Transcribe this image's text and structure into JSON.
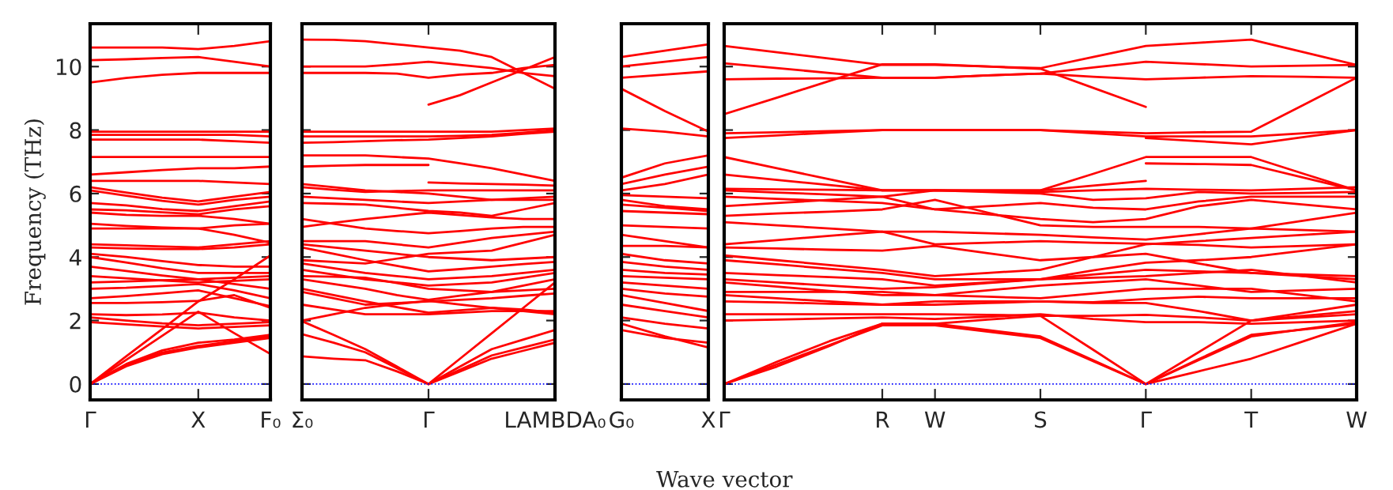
{
  "chart_data": [
    {
      "type": "line",
      "ylabel": "Frequency (THz)",
      "categories": [
        "Γ",
        null,
        null,
        "X",
        null,
        "F₀"
      ],
      "ylim": [
        -0.5,
        11.35
      ],
      "yticks": [
        0,
        2,
        4,
        6,
        8,
        10
      ],
      "grid": false,
      "legend": false,
      "ref_lines": [
        {
          "axis": "y",
          "value": 0,
          "color": "#0000ff",
          "line_style": "dotted"
        }
      ],
      "series": [
        {
          "color": "#ff0000",
          "values": [
            10.6,
            10.6,
            10.6,
            10.55,
            10.65,
            10.8
          ]
        },
        {
          "color": "#ff0000",
          "values": [
            10.2,
            10.23,
            10.27,
            10.3,
            10.15,
            10.0
          ]
        },
        {
          "color": "#ff0000",
          "values": [
            9.5,
            9.64,
            9.74,
            9.8,
            9.8,
            9.8
          ]
        },
        {
          "color": "#ff0000",
          "values": [
            7.95,
            7.95,
            7.95,
            7.95,
            7.95,
            7.95
          ]
        },
        {
          "color": "#ff0000",
          "values": [
            7.85,
            7.85,
            7.85,
            7.85,
            7.85,
            7.8
          ]
        },
        {
          "color": "#ff0000",
          "values": [
            7.7,
            7.7,
            7.7,
            7.7,
            7.65,
            7.6
          ]
        },
        {
          "color": "#ff0000",
          "values": [
            7.15,
            7.15,
            7.15,
            7.15,
            7.15,
            7.15
          ]
        },
        {
          "color": "#ff0000",
          "values": [
            6.6,
            6.67,
            6.74,
            6.8,
            6.8,
            6.85
          ]
        },
        {
          "color": "#ff0000",
          "values": [
            6.4,
            6.4,
            6.4,
            6.4,
            6.35,
            6.3
          ]
        },
        {
          "color": "#ff0000",
          "values": [
            6.2,
            6.03,
            5.87,
            5.75,
            5.9,
            6.05
          ]
        },
        {
          "color": "#ff0000",
          "values": [
            6.1,
            5.93,
            5.77,
            5.65,
            5.8,
            5.9
          ]
        },
        {
          "color": "#ff0000",
          "values": [
            5.7,
            5.63,
            5.51,
            5.45,
            5.6,
            5.75
          ]
        },
        {
          "color": "#ff0000",
          "values": [
            5.5,
            5.47,
            5.41,
            5.35,
            5.5,
            5.6
          ]
        },
        {
          "color": "#ff0000",
          "values": [
            5.4,
            5.33,
            5.3,
            5.3,
            5.2,
            5.05
          ]
        },
        {
          "color": "#ff0000",
          "values": [
            5.05,
            4.98,
            4.93,
            4.9,
            5.0,
            5.05
          ]
        },
        {
          "color": "#ff0000",
          "values": [
            4.9,
            4.9,
            4.9,
            4.9,
            4.7,
            4.45
          ]
        },
        {
          "color": "#ff0000",
          "values": [
            4.4,
            4.37,
            4.33,
            4.3,
            4.4,
            4.5
          ]
        },
        {
          "color": "#ff0000",
          "values": [
            4.3,
            4.27,
            4.25,
            4.25,
            4.3,
            4.4
          ]
        },
        {
          "color": "#ff0000",
          "values": [
            4.1,
            4.0,
            3.87,
            3.75,
            3.7,
            3.7
          ]
        },
        {
          "color": "#ff0000",
          "values": [
            4.0,
            3.83,
            3.65,
            3.5,
            3.5,
            3.5
          ]
        },
        {
          "color": "#ff0000",
          "values": [
            3.7,
            3.56,
            3.42,
            3.3,
            3.35,
            3.4
          ]
        },
        {
          "color": "#ff0000",
          "values": [
            3.4,
            3.33,
            3.26,
            3.2,
            3.25,
            3.3
          ]
        },
        {
          "color": "#ff0000",
          "values": [
            3.2,
            3.23,
            3.27,
            3.3,
            3.15,
            3.0
          ]
        },
        {
          "color": "#ff0000",
          "values": [
            3.0,
            3.03,
            3.09,
            3.15,
            2.95,
            2.7
          ]
        },
        {
          "color": "#ff0000",
          "values": [
            2.7,
            2.77,
            2.86,
            2.95,
            2.7,
            2.45
          ]
        },
        {
          "color": "#ff0000",
          "values": [
            2.55,
            2.55,
            2.58,
            2.62,
            2.8,
            2.4
          ]
        },
        {
          "color": "#ff0000",
          "values": [
            2.2,
            2.17,
            2.19,
            2.25,
            2.1,
            2.0
          ]
        },
        {
          "color": "#ff0000",
          "values": [
            2.1,
            2.0,
            1.91,
            1.85,
            1.9,
            1.95
          ]
        },
        {
          "color": "#ff0000",
          "values": [
            1.95,
            1.88,
            1.81,
            1.75,
            1.8,
            1.85
          ]
        },
        {
          "color": "#ff0000",
          "values": [
            0,
            0.87,
            1.73,
            2.6,
            3.3,
            4.05
          ]
        },
        {
          "color": "#ff0000",
          "values": [
            0,
            0.76,
            1.52,
            2.28,
            1.6,
            0.95
          ]
        },
        {
          "color": "#ff0000",
          "values": [
            0,
            0.63,
            1.06,
            1.3,
            1.4,
            1.55
          ]
        },
        {
          "color": "#ff0000",
          "values": [
            0,
            0.6,
            0.99,
            1.2,
            1.35,
            1.5
          ]
        },
        {
          "color": "#ff0000",
          "values": [
            0,
            0.56,
            0.94,
            1.15,
            1.3,
            1.45
          ]
        }
      ]
    },
    {
      "type": "line",
      "categories": [
        "Σ₀",
        null,
        null,
        null,
        "Γ",
        null,
        null,
        null,
        "LAMBDA₀"
      ],
      "ylim": [
        -0.5,
        11.35
      ],
      "yticks": [
        0,
        2,
        4,
        6,
        8,
        10
      ],
      "tick_labels": "x",
      "grid": false,
      "legend": false,
      "ref_lines": [
        {
          "axis": "y",
          "value": 0,
          "color": "#0000ff",
          "line_style": "dotted"
        }
      ],
      "series": [
        {
          "color": "#ff0000",
          "values": [
            10.85,
            10.84,
            10.8,
            10.7,
            10.6,
            10.5,
            10.3,
            9.8,
            9.3
          ]
        },
        {
          "color": "#ff0000",
          "values": [
            10.0,
            10.0,
            10.0,
            10.07,
            10.15,
            10.05,
            9.95,
            9.8,
            9.7
          ]
        },
        {
          "color": "#ff0000",
          "values": [
            9.8,
            9.8,
            9.8,
            9.78,
            9.65,
            9.75,
            9.8,
            9.95,
            10.05
          ]
        },
        {
          "color": "#ff0000",
          "values": [
            null,
            null,
            null,
            null,
            8.8,
            9.1,
            9.5,
            9.9,
            10.3
          ]
        },
        {
          "color": "#ff0000",
          "values": [
            7.95,
            7.95,
            7.95,
            7.95,
            7.95,
            7.95,
            7.95,
            8.0,
            8.05
          ]
        },
        {
          "color": "#ff0000",
          "values": [
            7.8,
            7.8,
            7.8,
            7.8,
            7.8,
            7.82,
            7.85,
            7.92,
            8.0
          ]
        },
        {
          "color": "#ff0000",
          "values": [
            7.6,
            7.62,
            7.65,
            7.68,
            7.7,
            7.75,
            7.8,
            7.88,
            7.95
          ]
        },
        {
          "color": "#ff0000",
          "values": [
            7.2,
            7.2,
            7.2,
            7.15,
            7.1,
            6.95,
            6.8,
            6.6,
            6.4
          ]
        },
        {
          "color": "#ff0000",
          "values": [
            6.85,
            6.88,
            6.9,
            6.9,
            6.9,
            null,
            null,
            null,
            null
          ]
        },
        {
          "color": "#ff0000",
          "values": [
            null,
            null,
            null,
            null,
            6.35,
            6.32,
            6.3,
            6.28,
            6.25
          ]
        },
        {
          "color": "#ff0000",
          "values": [
            6.3,
            6.2,
            6.1,
            6.05,
            6.0,
            5.9,
            5.8,
            5.85,
            5.9
          ]
        },
        {
          "color": "#ff0000",
          "values": [
            6.2,
            6.12,
            6.05,
            6.08,
            6.1,
            6.1,
            6.1,
            6.1,
            6.1
          ]
        },
        {
          "color": "#ff0000",
          "values": [
            5.9,
            5.85,
            5.8,
            5.75,
            5.7,
            5.75,
            5.8,
            5.8,
            5.8
          ]
        },
        {
          "color": "#ff0000",
          "values": [
            5.7,
            5.68,
            5.65,
            5.55,
            5.45,
            5.4,
            5.3,
            5.5,
            5.7
          ]
        },
        {
          "color": "#ff0000",
          "values": [
            4.95,
            5.08,
            5.2,
            5.3,
            5.4,
            5.32,
            5.25,
            5.2,
            5.2
          ]
        },
        {
          "color": "#ff0000",
          "values": [
            5.2,
            5.05,
            4.9,
            4.82,
            4.75,
            4.82,
            4.9,
            4.95,
            4.95
          ]
        },
        {
          "color": "#ff0000",
          "values": [
            4.5,
            4.5,
            4.5,
            4.4,
            4.3,
            4.45,
            4.6,
            4.7,
            4.8
          ]
        },
        {
          "color": "#ff0000",
          "values": [
            3.9,
            3.85,
            3.8,
            3.95,
            4.1,
            4.15,
            4.2,
            4.45,
            4.7
          ]
        },
        {
          "color": "#ff0000",
          "values": [
            4.4,
            4.3,
            4.2,
            4.1,
            4.0,
            3.95,
            3.9,
            3.95,
            4.0
          ]
        },
        {
          "color": "#ff0000",
          "values": [
            4.3,
            4.1,
            3.9,
            3.72,
            3.55,
            3.62,
            3.7,
            3.78,
            3.85
          ]
        },
        {
          "color": "#ff0000",
          "values": [
            3.8,
            3.65,
            3.5,
            3.4,
            3.3,
            3.35,
            3.4,
            3.5,
            3.6
          ]
        },
        {
          "color": "#ff0000",
          "values": [
            3.6,
            3.45,
            3.3,
            3.2,
            3.1,
            3.15,
            3.2,
            3.35,
            3.5
          ]
        },
        {
          "color": "#ff0000",
          "values": [
            3.4,
            3.38,
            3.35,
            3.18,
            3.0,
            2.95,
            2.9,
            2.95,
            3.0
          ]
        },
        {
          "color": "#ff0000",
          "values": [
            3.3,
            3.15,
            3.0,
            2.8,
            2.65,
            2.78,
            2.9,
            3.1,
            3.3
          ]
        },
        {
          "color": "#ff0000",
          "values": [
            3.0,
            2.8,
            2.6,
            2.42,
            2.25,
            2.32,
            2.4,
            2.3,
            2.2
          ]
        },
        {
          "color": "#ff0000",
          "values": [
            2.9,
            2.7,
            2.5,
            2.55,
            2.6,
            2.65,
            2.7,
            2.78,
            2.85
          ]
        },
        {
          "color": "#ff0000",
          "values": [
            2.5,
            2.35,
            2.2,
            2.2,
            2.2,
            2.25,
            2.3,
            2.3,
            2.3
          ]
        },
        {
          "color": "#ff0000",
          "values": [
            2.0,
            2.2,
            2.4,
            2.52,
            2.62,
            2.5,
            2.4,
            2.35,
            2.25
          ]
        },
        {
          "color": "#ff0000",
          "values": [
            1.98,
            1.55,
            1.1,
            0.55,
            0,
            0.8,
            1.6,
            2.4,
            3.2
          ]
        },
        {
          "color": "#ff0000",
          "values": [
            1.57,
            1.3,
            1.0,
            0.5,
            0,
            0.55,
            1.1,
            1.4,
            1.7
          ]
        },
        {
          "color": "#ff0000",
          "values": [
            0.87,
            0.8,
            0.75,
            0.4,
            0,
            0.45,
            0.9,
            1.15,
            1.4
          ]
        },
        {
          "color": "#ff0000",
          "values": [
            null,
            null,
            null,
            null,
            0,
            0.4,
            0.8,
            1.05,
            1.3
          ]
        }
      ]
    },
    {
      "type": "line",
      "categories": [
        "G₀",
        null,
        "X"
      ],
      "ylim": [
        -0.5,
        11.35
      ],
      "yticks": [
        0,
        2,
        4,
        6,
        8,
        10
      ],
      "tick_labels": "x",
      "grid": false,
      "legend": false,
      "ref_lines": [
        {
          "axis": "y",
          "value": 0,
          "color": "#0000ff",
          "line_style": "dotted"
        }
      ],
      "series": [
        {
          "color": "#ff0000",
          "values": [
            10.3,
            10.5,
            10.7
          ]
        },
        {
          "color": "#ff0000",
          "values": [
            10.0,
            10.15,
            10.3
          ]
        },
        {
          "color": "#ff0000",
          "values": [
            9.65,
            9.75,
            9.85
          ]
        },
        {
          "color": "#ff0000",
          "values": [
            9.3,
            8.6,
            7.95
          ]
        },
        {
          "color": "#ff0000",
          "values": [
            8.05,
            7.95,
            7.8
          ]
        },
        {
          "color": "#ff0000",
          "values": [
            6.5,
            6.95,
            7.2
          ]
        },
        {
          "color": "#ff0000",
          "values": [
            6.3,
            6.6,
            6.85
          ]
        },
        {
          "color": "#ff0000",
          "values": [
            6.1,
            6.3,
            6.6
          ]
        },
        {
          "color": "#ff0000",
          "values": [
            5.95,
            5.9,
            5.85
          ]
        },
        {
          "color": "#ff0000",
          "values": [
            5.8,
            5.6,
            5.5
          ]
        },
        {
          "color": "#ff0000",
          "values": [
            5.65,
            5.55,
            5.45
          ]
        },
        {
          "color": "#ff0000",
          "values": [
            5.45,
            5.4,
            5.35
          ]
        },
        {
          "color": "#ff0000",
          "values": [
            5.0,
            4.95,
            4.9
          ]
        },
        {
          "color": "#ff0000",
          "values": [
            4.7,
            4.5,
            4.3
          ]
        },
        {
          "color": "#ff0000",
          "values": [
            4.35,
            4.35,
            4.3
          ]
        },
        {
          "color": "#ff0000",
          "values": [
            4.1,
            3.9,
            3.8
          ]
        },
        {
          "color": "#ff0000",
          "values": [
            3.85,
            3.7,
            3.6
          ]
        },
        {
          "color": "#ff0000",
          "values": [
            3.6,
            3.5,
            3.45
          ]
        },
        {
          "color": "#ff0000",
          "values": [
            3.4,
            3.35,
            3.3
          ]
        },
        {
          "color": "#ff0000",
          "values": [
            3.2,
            3.1,
            3.0
          ]
        },
        {
          "color": "#ff0000",
          "values": [
            3.0,
            2.85,
            2.75
          ]
        },
        {
          "color": "#ff0000",
          "values": [
            2.8,
            2.55,
            2.3
          ]
        },
        {
          "color": "#ff0000",
          "values": [
            2.5,
            2.3,
            2.1
          ]
        },
        {
          "color": "#ff0000",
          "values": [
            2.1,
            1.9,
            1.75
          ]
        },
        {
          "color": "#ff0000",
          "values": [
            1.9,
            1.5,
            1.15
          ]
        },
        {
          "color": "#ff0000",
          "values": [
            1.7,
            1.45,
            1.3
          ]
        }
      ]
    },
    {
      "type": "line",
      "xlabel": "Wave vector",
      "categories": [
        "Γ",
        null,
        null,
        "R",
        "W",
        null,
        "S",
        null,
        "Γ",
        null,
        "T",
        null,
        "W"
      ],
      "ylim": [
        -0.5,
        11.35
      ],
      "yticks": [
        0,
        2,
        4,
        6,
        8,
        10
      ],
      "tick_labels": "x",
      "grid": false,
      "legend": false,
      "ref_lines": [
        {
          "axis": "y",
          "value": 0,
          "color": "#0000ff",
          "line_style": "dotted"
        }
      ],
      "series": [
        {
          "color": "#ff0000",
          "values": [
            10.65,
            10.45,
            10.25,
            10.05,
            10.05,
            10.0,
            9.95,
            10.3,
            10.65,
            10.75,
            10.85,
            10.45,
            10.05
          ]
        },
        {
          "color": "#ff0000",
          "values": [
            10.1,
            9.95,
            9.8,
            9.65,
            9.65,
            9.72,
            9.78,
            9.97,
            10.15,
            10.08,
            10.0,
            10.03,
            10.05
          ]
        },
        {
          "color": "#ff0000",
          "values": [
            9.6,
            9.62,
            9.63,
            9.65,
            9.65,
            9.72,
            9.78,
            9.68,
            9.6,
            9.65,
            9.7,
            9.68,
            9.65
          ]
        },
        {
          "color": "#ff0000",
          "values": [
            8.5,
            9.02,
            9.55,
            10.07,
            10.07,
            10.0,
            9.93,
            9.33,
            8.73,
            null,
            null,
            null,
            null
          ]
        },
        {
          "color": "#ff0000",
          "values": [
            7.9,
            7.93,
            7.97,
            8.0,
            8.0,
            8.0,
            8.0,
            7.95,
            7.9,
            7.93,
            7.95,
            8.8,
            9.65
          ]
        },
        {
          "color": "#ff0000",
          "values": [
            7.75,
            7.83,
            7.92,
            8.0,
            8.0,
            8.0,
            8.0,
            7.9,
            7.8,
            7.8,
            7.8,
            7.9,
            8.0
          ]
        },
        {
          "color": "#ff0000",
          "values": [
            null,
            null,
            null,
            null,
            null,
            null,
            null,
            null,
            7.75,
            7.65,
            7.55,
            7.78,
            8.0
          ]
        },
        {
          "color": "#ff0000",
          "values": [
            7.15,
            6.8,
            6.45,
            6.1,
            6.1,
            6.1,
            6.1,
            6.62,
            7.15,
            7.15,
            7.15,
            6.62,
            6.1
          ]
        },
        {
          "color": "#ff0000",
          "values": [
            null,
            null,
            null,
            null,
            null,
            null,
            null,
            null,
            6.95,
            6.93,
            6.9,
            6.5,
            6.1
          ]
        },
        {
          "color": "#ff0000",
          "values": [
            6.6,
            6.43,
            6.27,
            6.1,
            6.1,
            6.1,
            6.1,
            6.25,
            6.4,
            null,
            null,
            null,
            null
          ]
        },
        {
          "color": "#ff0000",
          "values": [
            6.15,
            6.13,
            6.12,
            6.1,
            6.1,
            6.08,
            6.05,
            6.1,
            6.15,
            6.12,
            6.1,
            6.15,
            6.2
          ]
        },
        {
          "color": "#ff0000",
          "values": [
            6.1,
            6.03,
            5.97,
            5.9,
            6.1,
            6.05,
            6.0,
            5.8,
            5.85,
            6.05,
            6.0,
            6.02,
            6.05
          ]
        },
        {
          "color": "#ff0000",
          "values": [
            5.9,
            5.83,
            5.77,
            5.7,
            5.5,
            5.6,
            5.7,
            5.55,
            5.5,
            5.75,
            5.9,
            5.9,
            5.9
          ]
        },
        {
          "color": "#ff0000",
          "values": [
            5.6,
            5.7,
            5.8,
            5.9,
            5.5,
            5.35,
            5.2,
            5.1,
            5.2,
            5.6,
            5.8,
            5.65,
            5.5
          ]
        },
        {
          "color": "#ff0000",
          "values": [
            5.3,
            5.37,
            5.43,
            5.5,
            5.8,
            5.4,
            5.0,
            4.95,
            4.95,
            4.95,
            4.9,
            5.15,
            5.4
          ]
        },
        {
          "color": "#ff0000",
          "values": [
            5.1,
            5.0,
            4.9,
            4.8,
            4.8,
            4.75,
            4.7,
            4.62,
            4.55,
            4.72,
            4.9,
            4.85,
            4.8
          ]
        },
        {
          "color": "#ff0000",
          "values": [
            4.4,
            4.53,
            4.67,
            4.8,
            4.4,
            4.45,
            4.5,
            4.45,
            4.42,
            4.38,
            4.3,
            4.35,
            4.4
          ]
        },
        {
          "color": "#ff0000",
          "values": [
            4.05,
            3.9,
            3.75,
            3.6,
            3.4,
            3.5,
            3.6,
            4.0,
            4.4,
            4.5,
            4.6,
            4.7,
            4.8
          ]
        },
        {
          "color": "#ff0000",
          "values": [
            4.3,
            4.27,
            4.23,
            4.2,
            4.35,
            4.12,
            3.9,
            4.0,
            4.1,
            3.8,
            3.5,
            3.45,
            3.4
          ]
        },
        {
          "color": "#ff0000",
          "values": [
            3.9,
            3.77,
            3.63,
            3.5,
            3.3,
            3.3,
            3.3,
            3.58,
            3.82,
            3.9,
            4.0,
            4.2,
            4.4
          ]
        },
        {
          "color": "#ff0000",
          "values": [
            3.5,
            3.43,
            3.37,
            3.3,
            3.1,
            3.2,
            3.3,
            3.45,
            3.6,
            3.55,
            3.5,
            3.4,
            3.3
          ]
        },
        {
          "color": "#ff0000",
          "values": [
            3.3,
            3.2,
            3.1,
            3.0,
            3.05,
            3.18,
            3.3,
            3.35,
            3.4,
            3.5,
            3.6,
            3.4,
            3.2
          ]
        },
        {
          "color": "#ff0000",
          "values": [
            3.2,
            3.07,
            2.93,
            2.8,
            2.8,
            2.95,
            3.1,
            3.2,
            3.3,
            3.1,
            2.9,
            2.95,
            3.0
          ]
        },
        {
          "color": "#ff0000",
          "values": [
            2.9,
            2.9,
            2.9,
            2.9,
            2.8,
            2.75,
            2.7,
            2.85,
            3.0,
            3.0,
            3.0,
            2.8,
            2.6
          ]
        },
        {
          "color": "#ff0000",
          "values": [
            2.6,
            2.57,
            2.53,
            2.5,
            2.6,
            2.6,
            2.6,
            2.58,
            2.68,
            2.75,
            2.7,
            2.7,
            2.7
          ]
        },
        {
          "color": "#ff0000",
          "values": [
            2.8,
            2.7,
            2.6,
            2.5,
            2.5,
            2.55,
            2.6,
            2.55,
            2.55,
            2.3,
            2.0,
            2.25,
            2.5
          ]
        },
        {
          "color": "#ff0000",
          "values": [
            2.2,
            2.2,
            2.2,
            2.2,
            2.2,
            2.18,
            2.15,
            2.15,
            2.18,
            2.1,
            2.0,
            2.1,
            2.2
          ]
        },
        {
          "color": "#ff0000",
          "values": [
            2.0,
            2.03,
            2.07,
            2.1,
            2.05,
            2.12,
            2.2,
            2.05,
            1.95,
            1.95,
            1.9,
            1.95,
            2.0
          ]
        },
        {
          "color": "#ff0000",
          "values": [
            0,
            0.55,
            1.2,
            1.9,
            1.9,
            2.03,
            2.15,
            1.08,
            0,
            0.75,
            1.5,
            1.73,
            1.95
          ]
        },
        {
          "color": "#ff0000",
          "values": [
            0,
            0.7,
            1.35,
            1.9,
            1.9,
            1.7,
            1.5,
            0.75,
            0,
            0.78,
            1.55,
            1.72,
            1.9
          ]
        },
        {
          "color": "#ff0000",
          "values": [
            0,
            0.62,
            1.23,
            1.85,
            1.85,
            1.65,
            1.45,
            0.72,
            0,
            0.4,
            0.8,
            1.35,
            1.9
          ]
        },
        {
          "color": "#ff0000",
          "values": [
            null,
            null,
            null,
            null,
            null,
            null,
            null,
            null,
            0,
            1.0,
            2.0,
            2.15,
            2.3
          ]
        }
      ]
    }
  ]
}
